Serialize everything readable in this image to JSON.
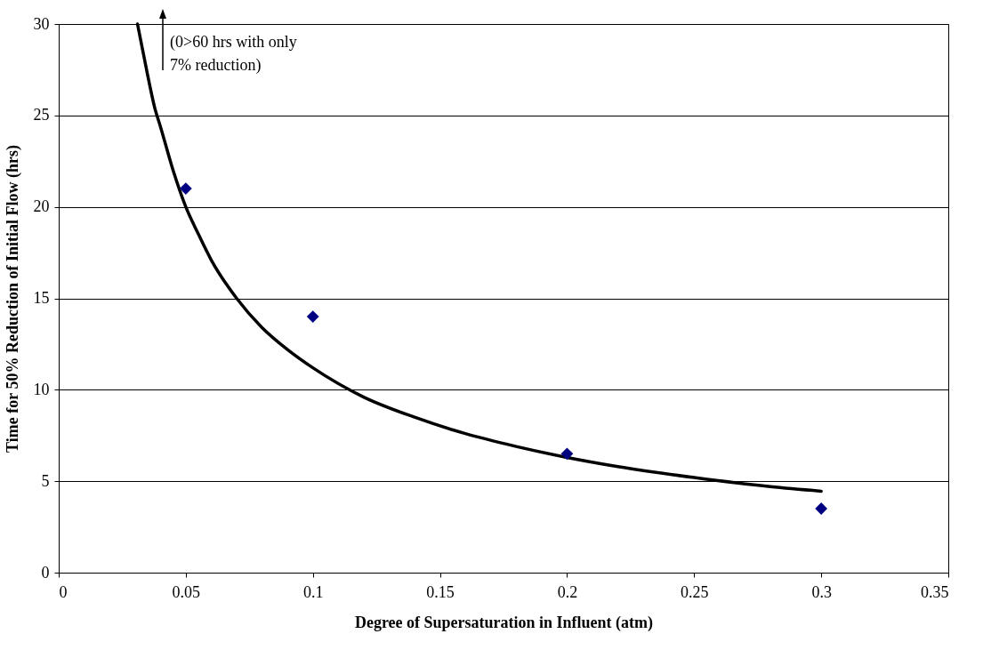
{
  "chart_data": {
    "type": "scatter",
    "xlabel": "Degree of Supersaturation in Influent (atm)",
    "ylabel": "Time for 50% Reduction of Initial Flow (hrs)",
    "xlim": [
      0,
      0.35
    ],
    "xticks": [
      0,
      0.05,
      0.1,
      0.15,
      0.2,
      0.25,
      0.3,
      0.35
    ],
    "ylim": [
      0,
      30
    ],
    "yticks": [
      0,
      5,
      10,
      15,
      20,
      25,
      30
    ],
    "grid": "y",
    "series": [
      {
        "type": "line",
        "color": "#000000",
        "line_style": "solid",
        "x": [
          0.031,
          0.033,
          0.035,
          0.038,
          0.04,
          0.045,
          0.05,
          0.055,
          0.06,
          0.07,
          0.08,
          0.09,
          0.1,
          0.12,
          0.14,
          0.16,
          0.18,
          0.2,
          0.22,
          0.25,
          0.28,
          0.3
        ],
        "values": [
          30,
          28.6,
          27.2,
          25.3,
          24.4,
          22,
          20,
          18.5,
          17.1,
          15,
          13.4,
          12.2,
          11.2,
          9.6,
          8.5,
          7.6,
          6.9,
          6.3,
          5.8,
          5.2,
          4.7,
          4.45
        ]
      },
      {
        "color": "#000080",
        "marker": "diamond",
        "x": [
          0.05,
          0.1,
          0.2,
          0.3
        ],
        "values": [
          21,
          14,
          6.5,
          3.5
        ]
      }
    ],
    "annotations": [
      "(0>60 hrs with only\n  7% reduction)"
    ]
  }
}
